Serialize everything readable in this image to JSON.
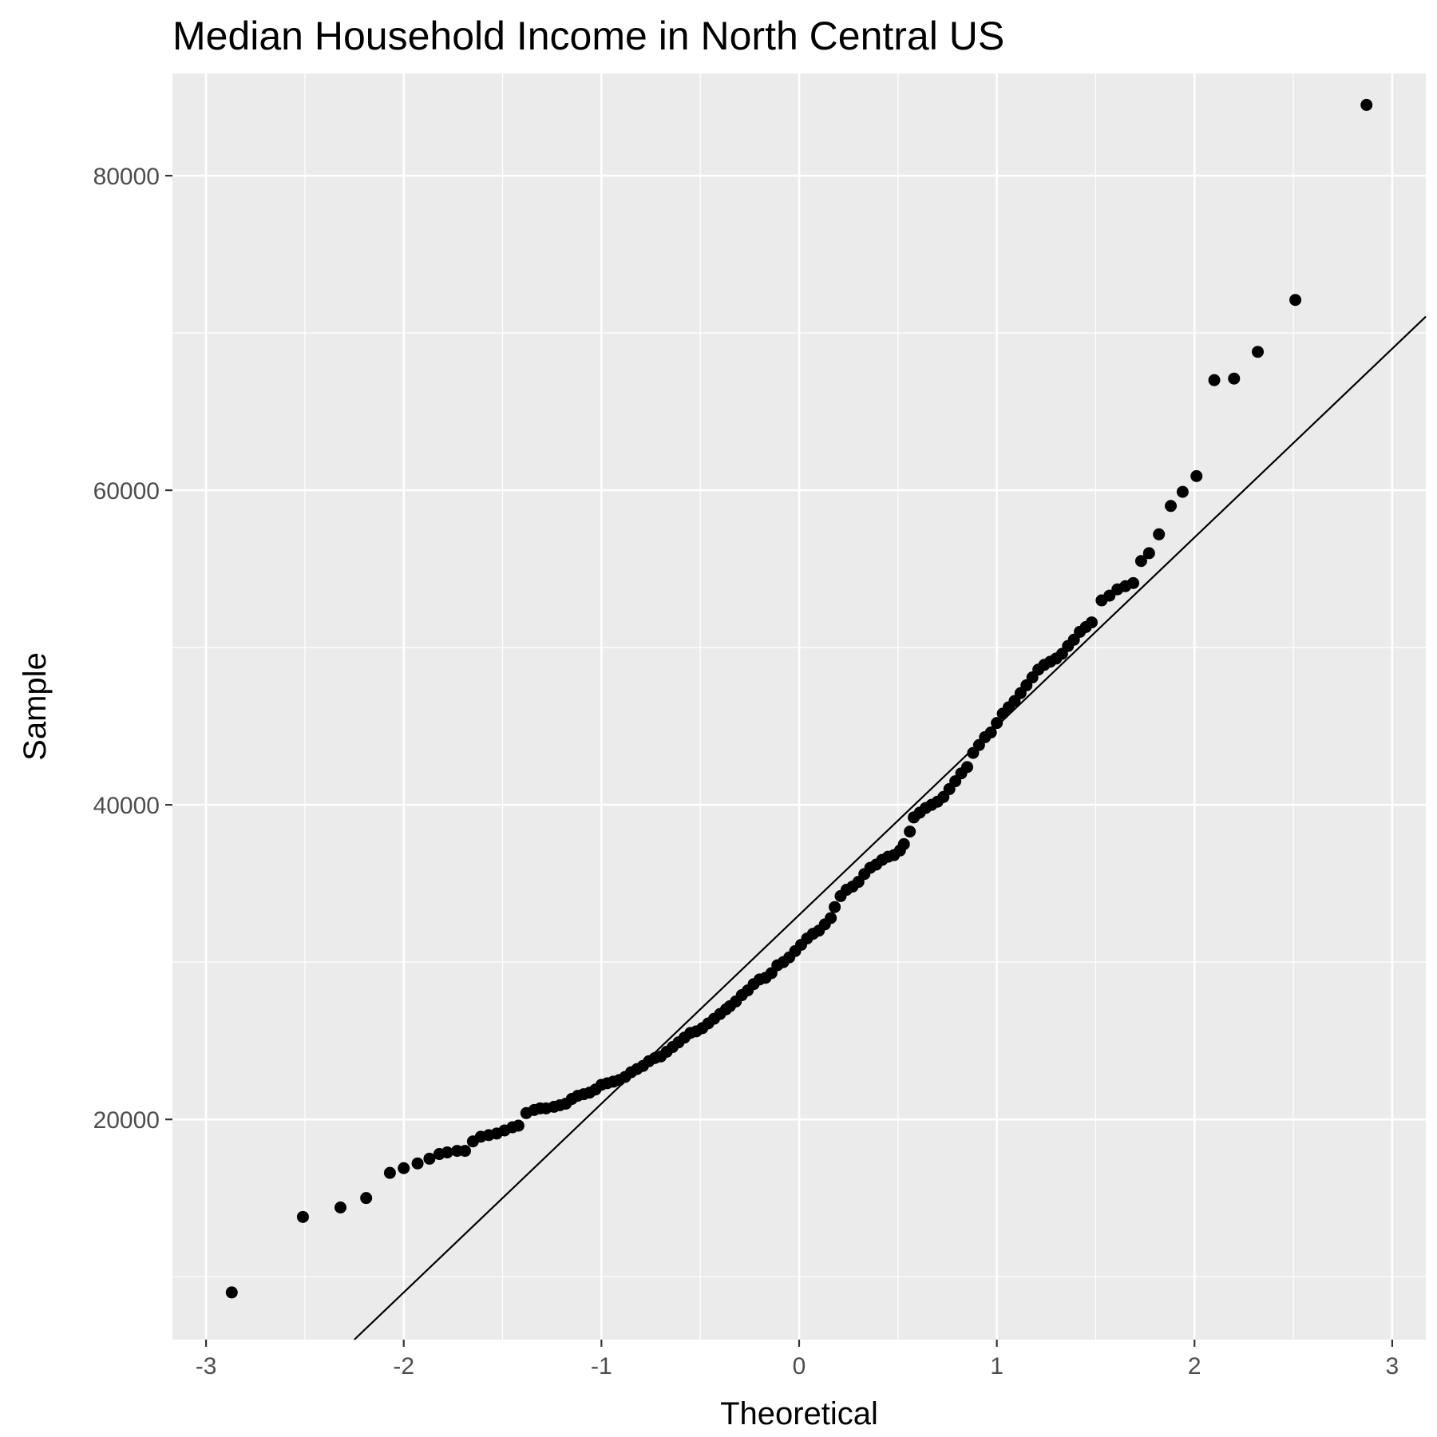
{
  "chart_data": {
    "type": "scatter",
    "title": "Median Household Income in North Central US",
    "xlabel": "Theoretical",
    "ylabel": "Sample",
    "xlim": [
      -3.17,
      3.17
    ],
    "ylim": [
      6000,
      86500
    ],
    "x_ticks": [
      -3,
      -2,
      -1,
      0,
      1,
      2,
      3
    ],
    "x_tick_labels": [
      "-3",
      "-2",
      "-1",
      "0",
      "1",
      "2",
      "3"
    ],
    "y_ticks": [
      20000,
      40000,
      60000,
      80000
    ],
    "y_tick_labels": [
      "20000",
      "40000",
      "60000",
      "80000"
    ],
    "grid": true,
    "legend": "none",
    "colors": {
      "panel": "#ebebeb",
      "grid": "#ffffff",
      "points": "#000000",
      "line": "#000000"
    },
    "reference_line": {
      "slope": 12000,
      "intercept": 33000
    },
    "series": [
      {
        "type": "scatter",
        "points": [
          [
            -2.87,
            9000
          ],
          [
            -2.51,
            13800
          ],
          [
            -2.32,
            14400
          ],
          [
            -2.19,
            15000
          ],
          [
            -2.07,
            16600
          ],
          [
            -2.0,
            16900
          ],
          [
            -1.93,
            17200
          ],
          [
            -1.87,
            17500
          ],
          [
            -1.82,
            17800
          ],
          [
            -1.78,
            17900
          ],
          [
            -1.73,
            18000
          ],
          [
            -1.69,
            18000
          ],
          [
            -1.65,
            18600
          ],
          [
            -1.61,
            18900
          ],
          [
            -1.57,
            19000
          ],
          [
            -1.53,
            19100
          ],
          [
            -1.49,
            19300
          ],
          [
            -1.45,
            19500
          ],
          [
            -1.42,
            19600
          ],
          [
            -1.38,
            20400
          ],
          [
            -1.34,
            20600
          ],
          [
            -1.31,
            20700
          ],
          [
            -1.28,
            20700
          ],
          [
            -1.24,
            20800
          ],
          [
            -1.21,
            20900
          ],
          [
            -1.18,
            21000
          ],
          [
            -1.15,
            21300
          ],
          [
            -1.12,
            21500
          ],
          [
            -1.09,
            21600
          ],
          [
            -1.06,
            21700
          ],
          [
            -1.03,
            21900
          ],
          [
            -1.0,
            22200
          ],
          [
            -0.97,
            22300
          ],
          [
            -0.94,
            22400
          ],
          [
            -0.91,
            22500
          ],
          [
            -0.88,
            22700
          ],
          [
            -0.85,
            23000
          ],
          [
            -0.82,
            23200
          ],
          [
            -0.79,
            23400
          ],
          [
            -0.76,
            23700
          ],
          [
            -0.73,
            23900
          ],
          [
            -0.7,
            24000
          ],
          [
            -0.67,
            24300
          ],
          [
            -0.64,
            24600
          ],
          [
            -0.61,
            24900
          ],
          [
            -0.58,
            25200
          ],
          [
            -0.55,
            25500
          ],
          [
            -0.52,
            25600
          ],
          [
            -0.49,
            25800
          ],
          [
            -0.46,
            26100
          ],
          [
            -0.43,
            26400
          ],
          [
            -0.4,
            26700
          ],
          [
            -0.37,
            27000
          ],
          [
            -0.35,
            27200
          ],
          [
            -0.32,
            27500
          ],
          [
            -0.29,
            27900
          ],
          [
            -0.26,
            28200
          ],
          [
            -0.23,
            28600
          ],
          [
            -0.2,
            28900
          ],
          [
            -0.17,
            29000
          ],
          [
            -0.14,
            29300
          ],
          [
            -0.11,
            29800
          ],
          [
            -0.08,
            30000
          ],
          [
            -0.05,
            30300
          ],
          [
            -0.02,
            30700
          ],
          [
            0.01,
            31100
          ],
          [
            0.04,
            31500
          ],
          [
            0.07,
            31800
          ],
          [
            0.1,
            32000
          ],
          [
            0.13,
            32400
          ],
          [
            0.16,
            32800
          ],
          [
            0.18,
            33500
          ],
          [
            0.21,
            34200
          ],
          [
            0.24,
            34600
          ],
          [
            0.27,
            34800
          ],
          [
            0.3,
            35100
          ],
          [
            0.33,
            35600
          ],
          [
            0.36,
            36000
          ],
          [
            0.39,
            36200
          ],
          [
            0.42,
            36500
          ],
          [
            0.45,
            36700
          ],
          [
            0.48,
            36800
          ],
          [
            0.51,
            37100
          ],
          [
            0.53,
            37500
          ],
          [
            0.56,
            38300
          ],
          [
            0.58,
            39200
          ],
          [
            0.61,
            39500
          ],
          [
            0.64,
            39800
          ],
          [
            0.67,
            40000
          ],
          [
            0.7,
            40200
          ],
          [
            0.73,
            40500
          ],
          [
            0.76,
            41000
          ],
          [
            0.79,
            41500
          ],
          [
            0.82,
            42000
          ],
          [
            0.85,
            42400
          ],
          [
            0.88,
            43300
          ],
          [
            0.91,
            43800
          ],
          [
            0.94,
            44300
          ],
          [
            0.97,
            44600
          ],
          [
            1.0,
            45200
          ],
          [
            1.03,
            45800
          ],
          [
            1.06,
            46200
          ],
          [
            1.09,
            46600
          ],
          [
            1.12,
            47100
          ],
          [
            1.15,
            47600
          ],
          [
            1.18,
            48100
          ],
          [
            1.21,
            48600
          ],
          [
            1.24,
            48900
          ],
          [
            1.27,
            49100
          ],
          [
            1.3,
            49300
          ],
          [
            1.33,
            49600
          ],
          [
            1.36,
            50100
          ],
          [
            1.39,
            50500
          ],
          [
            1.42,
            51000
          ],
          [
            1.45,
            51300
          ],
          [
            1.48,
            51600
          ],
          [
            1.53,
            53000
          ],
          [
            1.57,
            53300
          ],
          [
            1.61,
            53700
          ],
          [
            1.65,
            53900
          ],
          [
            1.69,
            54100
          ],
          [
            1.73,
            55500
          ],
          [
            1.77,
            56000
          ],
          [
            1.82,
            57200
          ],
          [
            1.88,
            59000
          ],
          [
            1.94,
            59900
          ],
          [
            2.01,
            60900
          ],
          [
            2.1,
            67000
          ],
          [
            2.2,
            67100
          ],
          [
            2.32,
            68800
          ],
          [
            2.51,
            72100
          ],
          [
            2.87,
            84500
          ]
        ]
      }
    ]
  }
}
